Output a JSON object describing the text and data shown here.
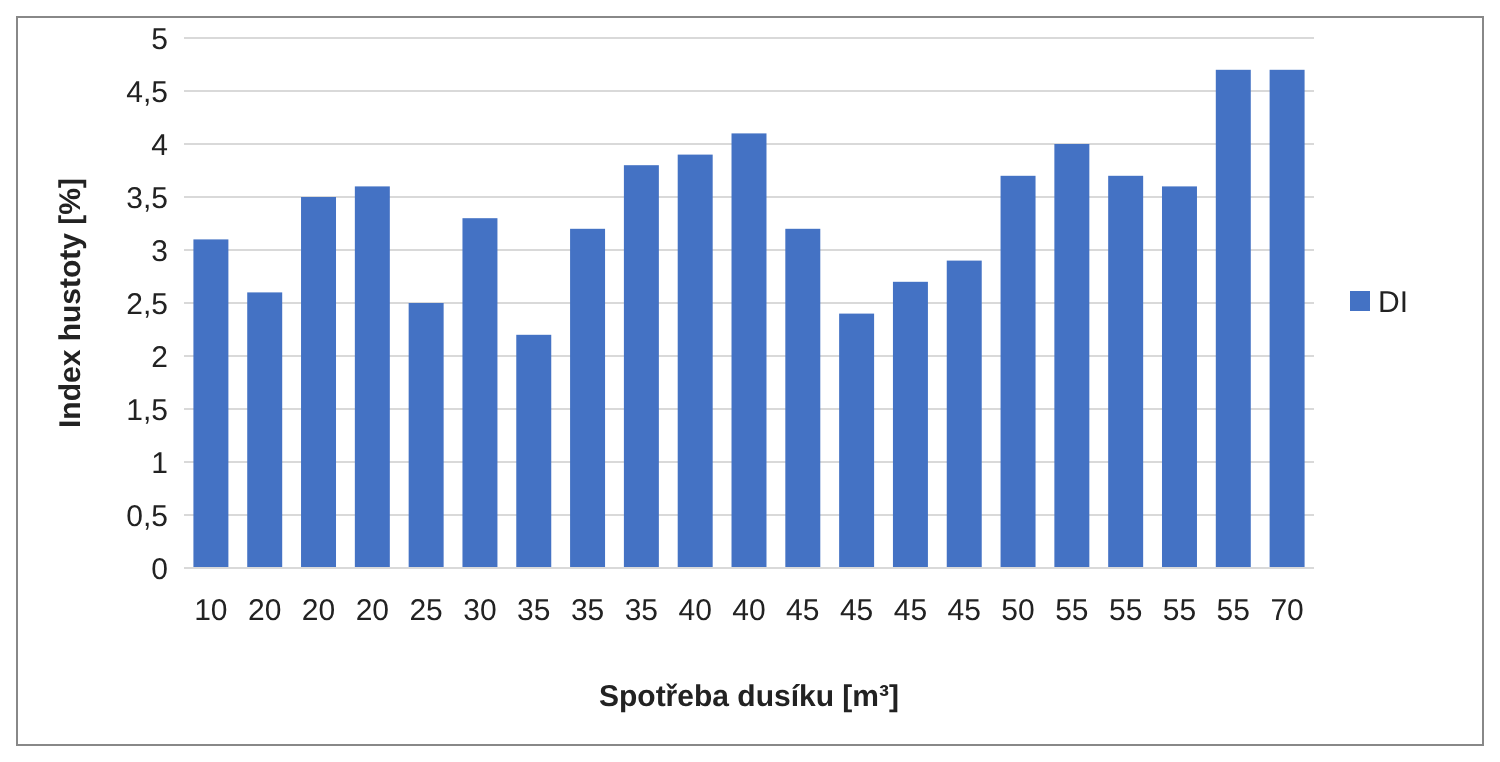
{
  "chart_data": {
    "type": "bar",
    "xlabel": "Spotřeba dusíku [m³]",
    "ylabel": "Index hustoty [%]",
    "categories": [
      "10",
      "20",
      "20",
      "20",
      "25",
      "30",
      "35",
      "35",
      "35",
      "40",
      "40",
      "45",
      "45",
      "45",
      "45",
      "50",
      "55",
      "55",
      "55",
      "55",
      "70"
    ],
    "series": [
      {
        "name": "DI",
        "color": "#4472c4",
        "values": [
          3.1,
          2.6,
          3.5,
          3.6,
          2.5,
          3.3,
          2.2,
          3.2,
          3.8,
          3.9,
          4.1,
          3.2,
          2.4,
          2.7,
          2.9,
          3.7,
          4.0,
          3.7,
          3.6,
          4.7,
          4.7
        ]
      }
    ],
    "ylim": [
      0,
      5
    ],
    "yticks": [
      0,
      {
        "value": 0.5,
        "label": "0,5"
      },
      1,
      {
        "value": 1.5,
        "label": "1,5"
      },
      2,
      {
        "value": 2.5,
        "label": "2,5"
      },
      3,
      {
        "value": 3.5,
        "label": "3,5"
      },
      4,
      {
        "value": 4.5,
        "label": "4,5"
      },
      5
    ],
    "grid": "y",
    "legend": "right"
  }
}
